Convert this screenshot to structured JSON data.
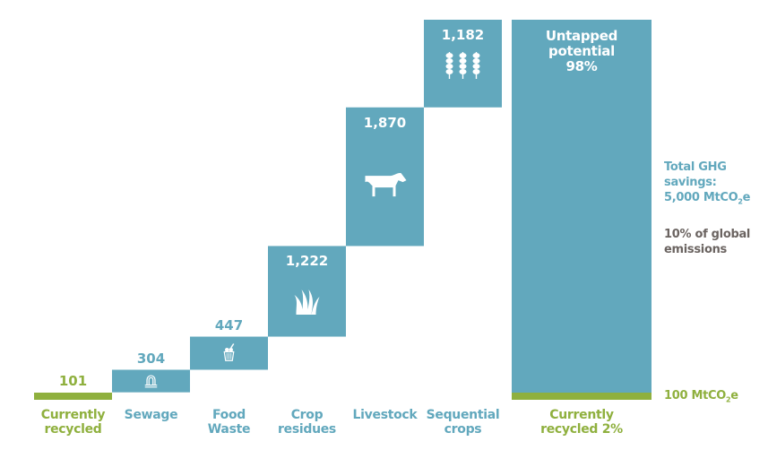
{
  "chart_data": {
    "type": "bar",
    "subtype": "waterfall",
    "unit": "MtCO2e",
    "categories": [
      "Currently recycled",
      "Sewage",
      "Food Waste",
      "Crop residues",
      "Livestock",
      "Sequential crops"
    ],
    "category_lines": [
      [
        "Currently",
        "recycled"
      ],
      [
        "Sewage",
        ""
      ],
      [
        "Food",
        "Waste"
      ],
      [
        "Crop",
        "residues"
      ],
      [
        "Livestock",
        ""
      ],
      [
        "Sequential",
        "crops"
      ]
    ],
    "values": [
      101,
      304,
      447,
      1222,
      1870,
      1182
    ],
    "value_labels": [
      "101",
      "304",
      "447",
      "1,222",
      "1,870",
      "1,182"
    ],
    "icons": [
      "",
      "sewage-pipe-icon",
      "food-waste-bin-icon",
      "grass-icon",
      "cow-icon",
      "wheat-icon"
    ],
    "total_bar": {
      "label_lines": [
        "Currently",
        "recycled 2%"
      ],
      "untapped_lines": [
        "Untapped",
        "potential",
        "98%"
      ],
      "untapped_percent": 98,
      "recycled_percent": 2,
      "baseline_label": "100 MtCO",
      "baseline_sub": "2",
      "baseline_suffix": "e"
    },
    "annotations": {
      "total_line1": "Total GHG",
      "total_line2": "savings:",
      "total_line3": "5,000 MtCO",
      "total_sub": "2",
      "total_suffix": "e",
      "global_line1": "10% of global",
      "global_line2": "emissions"
    },
    "colors": {
      "teal": "#62a8bd",
      "green": "#8fb03e",
      "grey": "#6b6461"
    }
  }
}
